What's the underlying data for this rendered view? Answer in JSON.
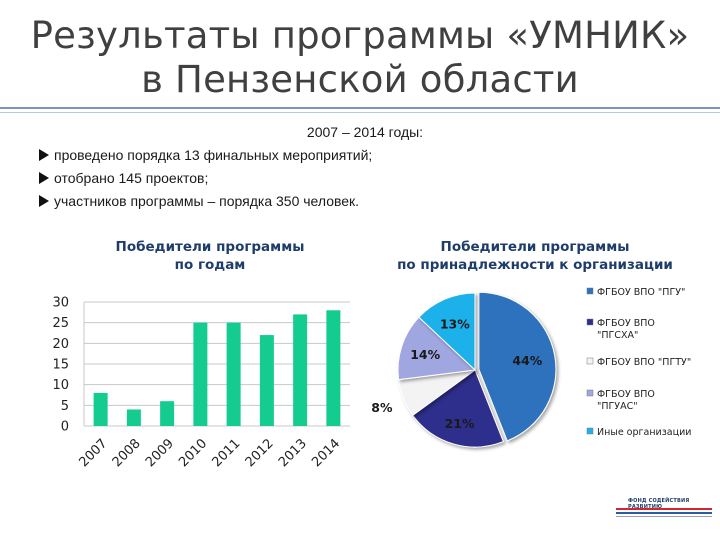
{
  "title_line1": "Результаты программы «УМНИК»",
  "title_line2": "в Пензенской области",
  "period": "2007 – 2014  годы:",
  "facts": [
    "проведено порядка 13 финальных мероприятий;",
    "отобрано 145 проектов;",
    "участников программы – порядка 350 человек."
  ],
  "logo_text": "ФОНД СОДЕЙСТВИЯ РАЗВИТИЮ",
  "colors": {
    "bar": "#14cc8f",
    "accent": "#7b93c4"
  },
  "chart_data": [
    {
      "type": "bar",
      "title_line1": "Победители программы",
      "title_line2": "по годам",
      "categories": [
        "2007",
        "2008",
        "2009",
        "2010",
        "2011",
        "2012",
        "2013",
        "2014"
      ],
      "values": [
        8,
        4,
        6,
        25,
        25,
        22,
        27,
        28
      ],
      "ylim": [
        0,
        30
      ],
      "yticks": [
        0,
        5,
        10,
        15,
        20,
        25,
        30
      ],
      "grid": true,
      "legend": "none"
    },
    {
      "type": "pie",
      "title_line1": "Победители программы",
      "title_line2": "по принадлежности к организации",
      "labels": [
        "ФГБОУ ВПО \"ПГУ\"",
        "ФГБОУ ВПО \"ПГСХА\"",
        "ФГБОУ ВПО \"ПГТУ\"",
        "ФГБОУ ВПО \"ПГУАС\"",
        "Иные организации"
      ],
      "legend_lines": [
        [
          "ФГБОУ ВПО \"ПГУ\""
        ],
        [
          "ФГБОУ ВПО",
          "\"ПГСХА\""
        ],
        [
          "ФГБОУ ВПО \"ПГТУ\""
        ],
        [
          "ФГБОУ ВПО",
          "\"ПГУАС\""
        ],
        [
          "Иные организации"
        ]
      ],
      "values": [
        44,
        21,
        8,
        14,
        13
      ],
      "value_labels": [
        "44%",
        "21%",
        "8%",
        "14%",
        "13%"
      ],
      "colors": [
        "#2e72bd",
        "#2d2f8c",
        "#f3f3f3",
        "#9fa6e0",
        "#1eb1ea"
      ],
      "legend": "right"
    }
  ]
}
